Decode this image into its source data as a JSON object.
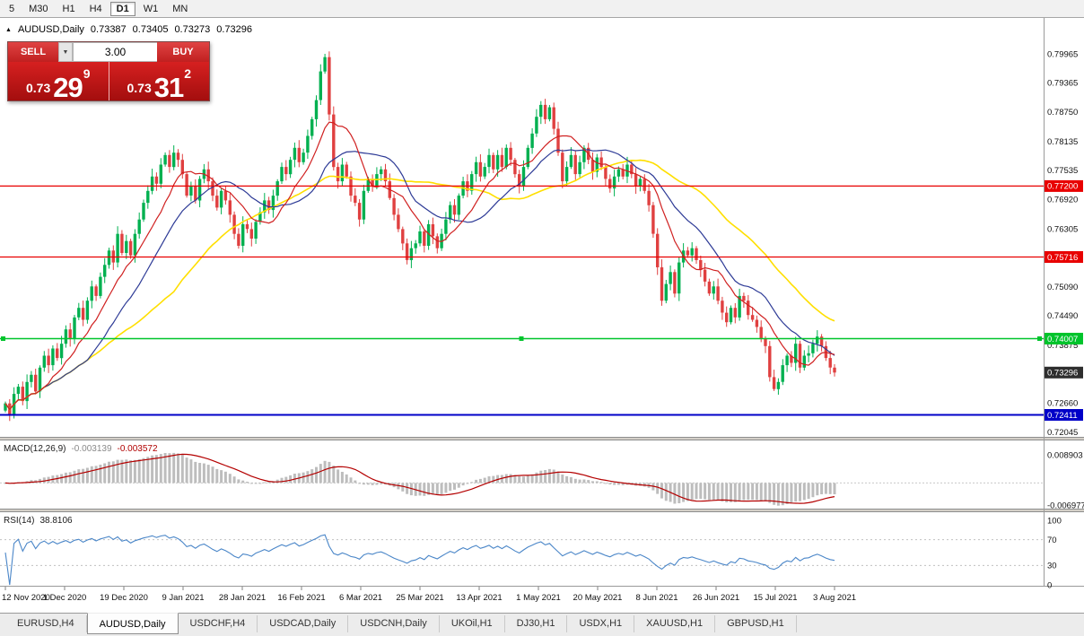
{
  "toolbar": {
    "timeframes": [
      {
        "label": "5",
        "active": false
      },
      {
        "label": "M30",
        "active": false
      },
      {
        "label": "H1",
        "active": false
      },
      {
        "label": "H4",
        "active": false
      },
      {
        "label": "D1",
        "active": true
      },
      {
        "label": "W1",
        "active": false
      },
      {
        "label": "MN",
        "active": false
      }
    ]
  },
  "chart_header": {
    "symbol": "AUDUSD,Daily",
    "open": "0.73387",
    "high": "0.73405",
    "low": "0.73273",
    "close": "0.73296"
  },
  "trade_panel": {
    "sell_label": "SELL",
    "buy_label": "BUY",
    "volume": "3.00",
    "sell_price": {
      "prefix": "0.73",
      "big": "29",
      "sup": "9"
    },
    "buy_price": {
      "prefix": "0.73",
      "big": "31",
      "sup": "2"
    },
    "panel_color": "#c01818"
  },
  "indicators": {
    "macd": {
      "name": "MACD(12,26,9)",
      "value_main": "-0.003139",
      "value_signal": "-0.003572",
      "histogram_color": "#bdbdbd",
      "signal_color": "#b40000"
    },
    "rsi": {
      "name": "RSI(14)",
      "value": "38.8106",
      "line_color": "#4a86c8"
    }
  },
  "tabs": [
    {
      "label": "EURUSD,H4",
      "active": false
    },
    {
      "label": "AUDUSD,Daily",
      "active": true
    },
    {
      "label": "USDCHF,H4",
      "active": false
    },
    {
      "label": "USDCAD,Daily",
      "active": false
    },
    {
      "label": "USDCNH,Daily",
      "active": false
    },
    {
      "label": "UKOil,H1",
      "active": false
    },
    {
      "label": "DJ30,H1",
      "active": false
    },
    {
      "label": "USDX,H1",
      "active": false
    },
    {
      "label": "XAUUSD,H1",
      "active": false
    },
    {
      "label": "GBPUSD,H1",
      "active": false
    }
  ],
  "chart_data": {
    "type": "candlestick",
    "symbol": "AUDUSD",
    "timeframe": "Daily",
    "current_ohlc": {
      "open": 0.73387,
      "high": 0.73405,
      "low": 0.73273,
      "close": 0.73296
    },
    "y_range": [
      0.7195,
      0.8072
    ],
    "y_ticks": [
      "0.79965",
      "0.79365",
      "0.78750",
      "0.78135",
      "0.77535",
      "0.76920",
      "0.76305",
      "0.75090",
      "0.74490",
      "0.73875",
      "0.72660",
      "0.72045"
    ],
    "x_labels": [
      "12 Nov 2020",
      "1 Dec 2020",
      "19 Dec 2020",
      "9 Jan 2021",
      "28 Jan 2021",
      "16 Feb 2021",
      "6 Mar 2021",
      "25 Mar 2021",
      "13 Apr 2021",
      "1 May 2021",
      "20 May 2021",
      "8 Jun 2021",
      "26 Jun 2021",
      "15 Jul 2021",
      "3 Aug 2021"
    ],
    "closes": [
      0.7265,
      0.724,
      0.7285,
      0.73,
      0.727,
      0.731,
      0.7325,
      0.729,
      0.734,
      0.7365,
      0.7345,
      0.738,
      0.736,
      0.739,
      0.742,
      0.74,
      0.7445,
      0.7465,
      0.744,
      0.748,
      0.751,
      0.749,
      0.753,
      0.7555,
      0.7585,
      0.756,
      0.762,
      0.758,
      0.7605,
      0.7575,
      0.762,
      0.765,
      0.7685,
      0.771,
      0.774,
      0.7725,
      0.7765,
      0.7785,
      0.776,
      0.779,
      0.7775,
      0.7745,
      0.77,
      0.772,
      0.769,
      0.7735,
      0.7755,
      0.773,
      0.77,
      0.7675,
      0.771,
      0.769,
      0.766,
      0.762,
      0.7595,
      0.764,
      0.763,
      0.761,
      0.7645,
      0.7665,
      0.769,
      0.767,
      0.77,
      0.773,
      0.776,
      0.7745,
      0.7775,
      0.78,
      0.777,
      0.779,
      0.7825,
      0.786,
      0.79,
      0.796,
      0.799,
      0.787,
      0.776,
      0.773,
      0.7765,
      0.774,
      0.77,
      0.7685,
      0.765,
      0.771,
      0.7735,
      0.772,
      0.7745,
      0.7755,
      0.773,
      0.7695,
      0.766,
      0.763,
      0.76,
      0.7565,
      0.759,
      0.76,
      0.7625,
      0.7595,
      0.764,
      0.7615,
      0.759,
      0.762,
      0.765,
      0.768,
      0.766,
      0.77,
      0.773,
      0.771,
      0.7745,
      0.777,
      0.774,
      0.776,
      0.7785,
      0.7755,
      0.7785,
      0.776,
      0.78,
      0.7775,
      0.7745,
      0.772,
      0.776,
      0.78,
      0.783,
      0.7865,
      0.789,
      0.786,
      0.7885,
      0.784,
      0.779,
      0.773,
      0.776,
      0.7785,
      0.7745,
      0.777,
      0.78,
      0.7775,
      0.775,
      0.778,
      0.776,
      0.7735,
      0.7715,
      0.774,
      0.7755,
      0.774,
      0.7765,
      0.7745,
      0.772,
      0.7735,
      0.771,
      0.768,
      0.762,
      0.755,
      0.748,
      0.7515,
      0.754,
      0.7495,
      0.756,
      0.7585,
      0.7575,
      0.759,
      0.7565,
      0.7545,
      0.752,
      0.7495,
      0.751,
      0.748,
      0.7455,
      0.7435,
      0.7465,
      0.7445,
      0.749,
      0.748,
      0.745,
      0.744,
      0.7425,
      0.74,
      0.7385,
      0.732,
      0.7295,
      0.731,
      0.7345,
      0.7365,
      0.735,
      0.739,
      0.734,
      0.7365,
      0.737,
      0.739,
      0.7405,
      0.7385,
      0.736,
      0.734,
      0.73296
    ],
    "candle_up_color": "#00b050",
    "candle_down_color": "#e04040",
    "moving_averages": [
      {
        "period": 10,
        "color": "#d02020"
      },
      {
        "period": 20,
        "color": "#2d3a96"
      },
      {
        "period": 40,
        "color": "#ffdf00"
      }
    ],
    "levels": [
      {
        "price": 0.772,
        "label": "0.77200",
        "color": "#e80000",
        "width": 1.2,
        "selected": false
      },
      {
        "price": 0.75716,
        "label": "0.75716",
        "color": "#e80000",
        "width": 1.2,
        "selected": false
      },
      {
        "price": 0.74007,
        "label": "0.74007",
        "color": "#00c42c",
        "width": 1.6,
        "selected": true
      },
      {
        "price": 0.72411,
        "label": "0.72411",
        "color": "#0000c8",
        "width": 2,
        "selected": false
      }
    ],
    "current_price": {
      "price": 0.73296,
      "label": "0.73296",
      "color": "#2e2e2e"
    },
    "macd": {
      "fast": 12,
      "slow": 26,
      "signal": 9,
      "axis_ticks": [
        {
          "label": "0.008903",
          "value": 0.008903
        },
        {
          "label": "-0.006977",
          "value": -0.006977
        }
      ]
    },
    "rsi": {
      "period": 14,
      "axis_ticks": [
        {
          "label": "100",
          "value": 100
        },
        {
          "label": "70",
          "value": 70
        },
        {
          "label": "30",
          "value": 30
        },
        {
          "label": "0",
          "value": 0
        }
      ],
      "levels": [
        70,
        30
      ]
    }
  }
}
